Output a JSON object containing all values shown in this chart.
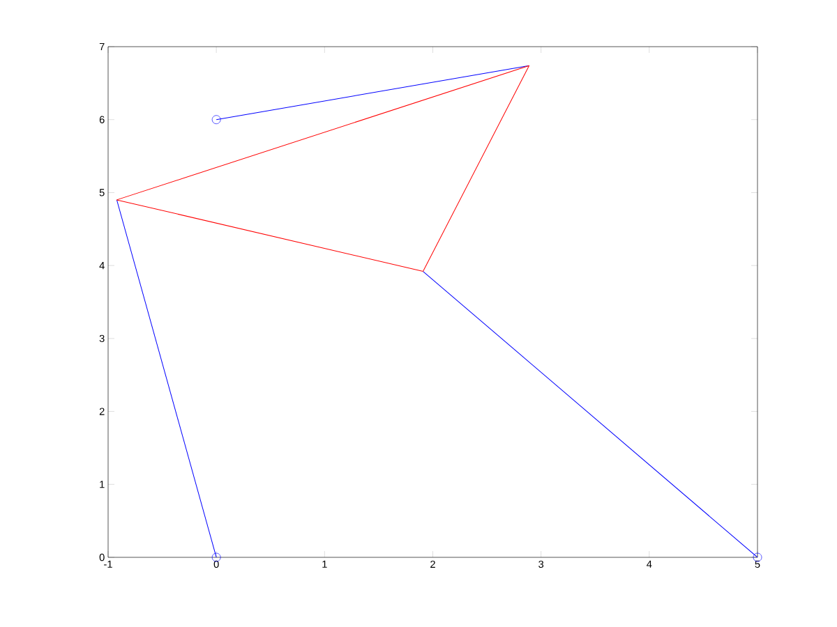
{
  "chart_data": {
    "type": "line",
    "xlim": [
      -1,
      5
    ],
    "ylim": [
      0,
      7
    ],
    "xticks": [
      -1,
      0,
      1,
      2,
      3,
      4,
      5
    ],
    "yticks": [
      0,
      1,
      2,
      3,
      4,
      5,
      6,
      7
    ],
    "grid": false,
    "series": [
      {
        "color": "#0000ff",
        "x": [
          0,
          -0.92
        ],
        "values": [
          0,
          4.9
        ]
      },
      {
        "color": "#0000ff",
        "x": [
          5,
          1.91
        ],
        "values": [
          0,
          3.92
        ]
      },
      {
        "color": "#0000ff",
        "x": [
          0,
          2.89
        ],
        "values": [
          6,
          6.74
        ]
      },
      {
        "color": "#ff0000",
        "x": [
          -0.92,
          2.89
        ],
        "values": [
          4.9,
          6.74
        ]
      },
      {
        "color": "#ff0000",
        "x": [
          2.89,
          1.91
        ],
        "values": [
          6.74,
          3.92
        ]
      },
      {
        "color": "#ff0000",
        "x": [
          1.91,
          -0.92
        ],
        "values": [
          3.92,
          4.9
        ]
      },
      {
        "type": "scatter",
        "color": "#0000ff",
        "marker": "circle",
        "x": [
          0,
          5,
          0
        ],
        "values": [
          0,
          0,
          6
        ]
      }
    ]
  }
}
